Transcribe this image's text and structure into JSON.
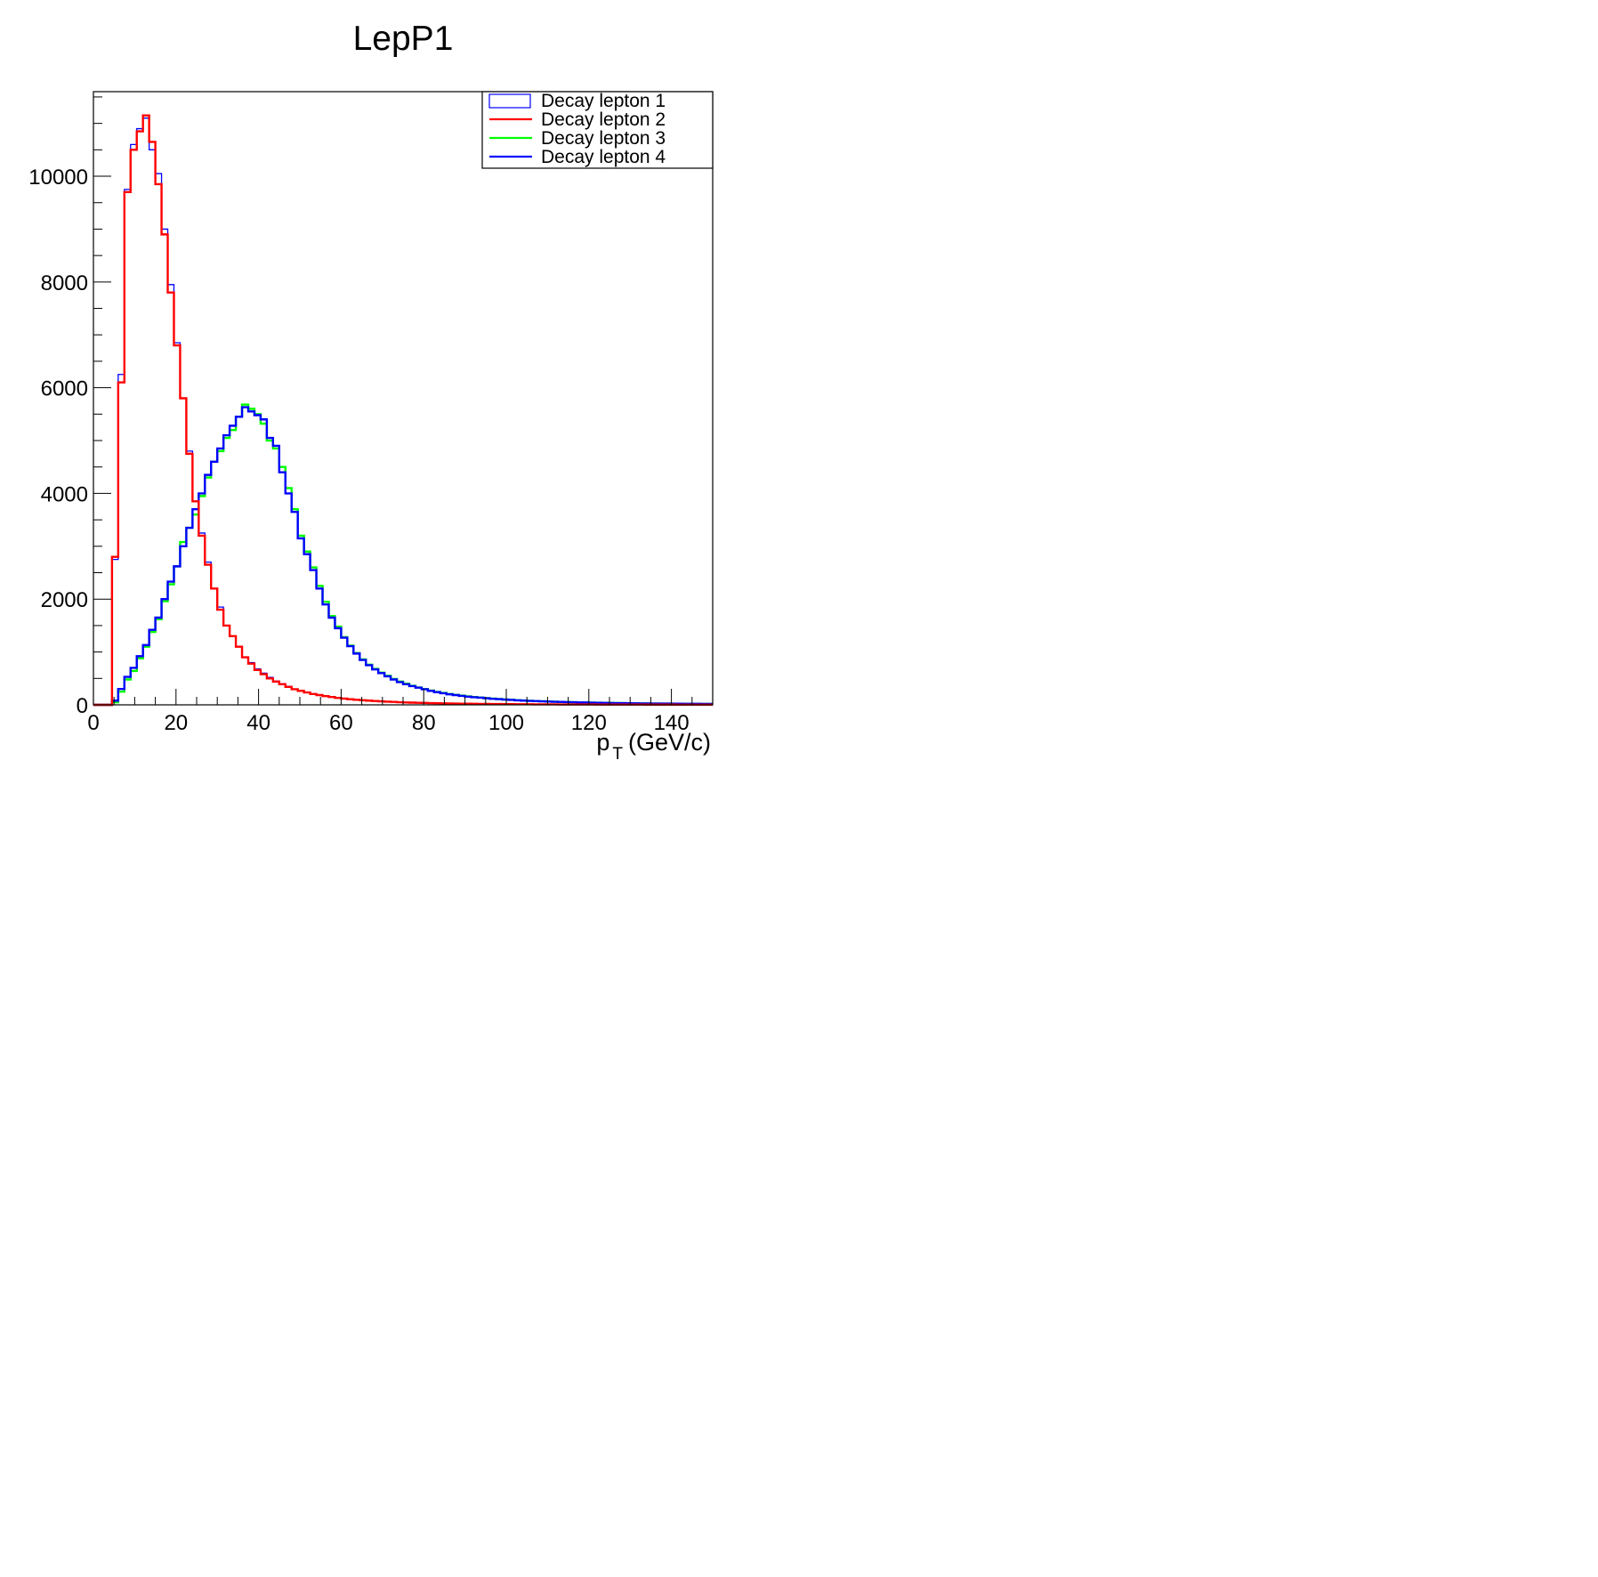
{
  "chart_data": {
    "type": "line",
    "title": "LepP1",
    "xlabel": "p_T (GeV/c)",
    "xlabel_main": "p",
    "xlabel_sub": "T",
    "xlabel_unit": "(GeV/c)",
    "ylabel": "",
    "xlim": [
      0,
      150
    ],
    "ylim": [
      0,
      11600
    ],
    "x_ticks": [
      "0",
      "20",
      "40",
      "60",
      "80",
      "100",
      "120",
      "140"
    ],
    "y_ticks": [
      "0",
      "2000",
      "4000",
      "6000",
      "8000",
      "10000"
    ],
    "bin_width": 1.5,
    "grid": false,
    "legend_position": "top-right",
    "series": [
      {
        "name": "Decay lepton 1",
        "color": "#0000ff",
        "style": "box",
        "x": [
          0.75,
          2.25,
          3.75,
          5.25,
          6.75,
          8.25,
          9.75,
          11.25,
          12.75,
          14.25,
          15.75,
          17.25,
          18.75,
          20.25,
          21.75,
          23.25,
          24.75,
          26.25,
          27.75,
          29.25,
          30.75,
          32.25,
          33.75,
          35.25,
          36.75,
          38.25,
          39.75,
          41.25,
          42.75,
          44.25,
          45.75,
          47.25,
          48.75,
          50.25,
          51.75,
          53.25,
          54.75,
          56.25,
          57.75,
          59.25,
          60.75,
          62.25,
          63.75,
          65.25,
          66.75,
          68.25,
          69.75,
          71.25,
          72.75,
          74.25,
          75.75,
          77.25,
          78.75,
          80.25,
          81.75,
          83.25,
          84.75,
          86.25,
          87.75,
          89.25,
          90.75,
          92.25,
          93.75,
          95.25,
          96.75,
          98.25,
          99.75,
          101.25,
          102.75,
          104.25,
          105.75,
          107.25,
          108.75,
          110.25,
          111.75,
          113.25,
          114.75,
          116.25,
          117.75,
          119.25,
          120.75,
          122.25,
          123.75,
          125.25,
          126.75,
          128.25,
          129.75,
          131.25,
          132.75,
          134.25,
          135.75,
          137.25,
          138.75,
          140.25,
          141.75,
          143.25,
          144.75,
          146.25,
          147.75,
          149.25
        ],
        "values": [
          0,
          0,
          0,
          2750,
          6250,
          9750,
          10600,
          10900,
          11100,
          10500,
          10050,
          9000,
          7950,
          6850,
          5800,
          4800,
          3850,
          3250,
          2700,
          2200,
          1850,
          1500,
          1300,
          1100,
          900,
          800,
          680,
          600,
          520,
          450,
          400,
          350,
          300,
          270,
          240,
          210,
          190,
          170,
          150,
          135,
          120,
          110,
          100,
          90,
          82,
          75,
          68,
          62,
          57,
          52,
          48,
          44,
          40,
          37,
          34,
          31,
          29,
          27,
          25,
          23,
          21,
          20,
          19,
          18,
          17,
          16,
          15,
          14,
          13,
          12,
          12,
          11,
          11,
          10,
          10,
          9,
          9,
          8,
          8,
          8,
          7,
          7,
          7,
          6,
          6,
          6,
          6,
          5,
          5,
          5,
          5,
          5,
          4,
          4,
          4,
          4,
          4,
          4,
          4,
          3
        ]
      },
      {
        "name": "Decay lepton 2",
        "color": "#ff0000",
        "style": "line",
        "x": [
          0.75,
          2.25,
          3.75,
          5.25,
          6.75,
          8.25,
          9.75,
          11.25,
          12.75,
          14.25,
          15.75,
          17.25,
          18.75,
          20.25,
          21.75,
          23.25,
          24.75,
          26.25,
          27.75,
          29.25,
          30.75,
          32.25,
          33.75,
          35.25,
          36.75,
          38.25,
          39.75,
          41.25,
          42.75,
          44.25,
          45.75,
          47.25,
          48.75,
          50.25,
          51.75,
          53.25,
          54.75,
          56.25,
          57.75,
          59.25,
          60.75,
          62.25,
          63.75,
          65.25,
          66.75,
          68.25,
          69.75,
          71.25,
          72.75,
          74.25,
          75.75,
          77.25,
          78.75,
          80.25,
          81.75,
          83.25,
          84.75,
          86.25,
          87.75,
          89.25,
          90.75,
          92.25,
          93.75,
          95.25,
          96.75,
          98.25,
          99.75,
          101.25,
          102.75,
          104.25,
          105.75,
          107.25,
          108.75,
          110.25,
          111.75,
          113.25,
          114.75,
          116.25,
          117.75,
          119.25,
          120.75,
          122.25,
          123.75,
          125.25,
          126.75,
          128.25,
          129.75,
          131.25,
          132.75,
          134.25,
          135.75,
          137.25,
          138.75,
          140.25,
          141.75,
          143.25,
          144.75,
          146.25,
          147.75,
          149.25
        ],
        "values": [
          0,
          0,
          0,
          2800,
          6100,
          9700,
          10500,
          10850,
          11150,
          10650,
          9850,
          8900,
          7800,
          6800,
          5800,
          4750,
          3850,
          3200,
          2650,
          2200,
          1800,
          1500,
          1300,
          1100,
          900,
          780,
          660,
          580,
          500,
          440,
          390,
          340,
          295,
          265,
          235,
          205,
          185,
          165,
          148,
          132,
          118,
          106,
          96,
          88,
          80,
          73,
          66,
          60,
          55,
          50,
          46,
          42,
          39,
          36,
          33,
          30,
          28,
          26,
          24,
          22,
          21,
          19,
          18,
          17,
          16,
          15,
          14,
          13,
          12,
          12,
          11,
          10,
          10,
          9,
          9,
          8,
          8,
          8,
          7,
          7,
          7,
          6,
          6,
          6,
          5,
          5,
          5,
          5,
          5,
          4,
          4,
          4,
          4,
          4,
          3,
          3,
          3,
          3,
          3,
          3
        ]
      },
      {
        "name": "Decay lepton 3",
        "color": "#00ff00",
        "style": "line",
        "x": [
          0.75,
          2.25,
          3.75,
          5.25,
          6.75,
          8.25,
          9.75,
          11.25,
          12.75,
          14.25,
          15.75,
          17.25,
          18.75,
          20.25,
          21.75,
          23.25,
          24.75,
          26.25,
          27.75,
          29.25,
          30.75,
          32.25,
          33.75,
          35.25,
          36.75,
          38.25,
          39.75,
          41.25,
          42.75,
          44.25,
          45.75,
          47.25,
          48.75,
          50.25,
          51.75,
          53.25,
          54.75,
          56.25,
          57.75,
          59.25,
          60.75,
          62.25,
          63.75,
          65.25,
          66.75,
          68.25,
          69.75,
          71.25,
          72.75,
          74.25,
          75.75,
          77.25,
          78.75,
          80.25,
          81.75,
          83.25,
          84.75,
          86.25,
          87.75,
          89.25,
          90.75,
          92.25,
          93.75,
          95.25,
          96.75,
          98.25,
          99.75,
          101.25,
          102.75,
          104.25,
          105.75,
          107.25,
          108.75,
          110.25,
          111.75,
          113.25,
          114.75,
          116.25,
          117.75,
          119.25,
          120.75,
          122.25,
          123.75,
          125.25,
          126.75,
          128.25,
          129.75,
          131.25,
          132.75,
          134.25,
          135.75,
          137.25,
          138.75,
          140.25,
          141.75,
          143.25,
          144.75,
          146.25,
          147.75,
          149.25
        ],
        "values": [
          0,
          0,
          0,
          50,
          250,
          480,
          640,
          880,
          1100,
          1380,
          1620,
          1960,
          2280,
          2620,
          3080,
          3350,
          3600,
          3950,
          4300,
          4600,
          4800,
          5050,
          5200,
          5450,
          5680,
          5600,
          5500,
          5320,
          5000,
          4850,
          4500,
          4100,
          3700,
          3200,
          2900,
          2600,
          2250,
          1950,
          1680,
          1480,
          1280,
          1120,
          980,
          860,
          760,
          680,
          610,
          550,
          490,
          440,
          400,
          360,
          330,
          300,
          270,
          245,
          225,
          205,
          190,
          175,
          160,
          148,
          138,
          128,
          118,
          110,
          102,
          95,
          88,
          82,
          77,
          72,
          68,
          64,
          60,
          56,
          53,
          50,
          47,
          45,
          42,
          40,
          38,
          36,
          34,
          33,
          31,
          30,
          28,
          27,
          26,
          25,
          24,
          23,
          22,
          21,
          20,
          20,
          19,
          18
        ]
      },
      {
        "name": "Decay lepton 4",
        "color": "#0000ff",
        "style": "line",
        "x": [
          0.75,
          2.25,
          3.75,
          5.25,
          6.75,
          8.25,
          9.75,
          11.25,
          12.75,
          14.25,
          15.75,
          17.25,
          18.75,
          20.25,
          21.75,
          23.25,
          24.75,
          26.25,
          27.75,
          29.25,
          30.75,
          32.25,
          33.75,
          35.25,
          36.75,
          38.25,
          39.75,
          41.25,
          42.75,
          44.25,
          45.75,
          47.25,
          48.75,
          50.25,
          51.75,
          53.25,
          54.75,
          56.25,
          57.75,
          59.25,
          60.75,
          62.25,
          63.75,
          65.25,
          66.75,
          68.25,
          69.75,
          71.25,
          72.75,
          74.25,
          75.75,
          77.25,
          78.75,
          80.25,
          81.75,
          83.25,
          84.75,
          86.25,
          87.75,
          89.25,
          90.75,
          92.25,
          93.75,
          95.25,
          96.75,
          98.25,
          99.75,
          101.25,
          102.75,
          104.25,
          105.75,
          107.25,
          108.75,
          110.25,
          111.75,
          113.25,
          114.75,
          116.25,
          117.75,
          119.25,
          120.75,
          122.25,
          123.75,
          125.25,
          126.75,
          128.25,
          129.75,
          131.25,
          132.75,
          134.25,
          135.75,
          137.25,
          138.75,
          140.25,
          141.75,
          143.25,
          144.75,
          146.25,
          147.75,
          149.25
        ],
        "values": [
          0,
          0,
          0,
          80,
          300,
          530,
          700,
          920,
          1130,
          1420,
          1650,
          2000,
          2330,
          2620,
          3000,
          3350,
          3700,
          4000,
          4350,
          4600,
          4850,
          5100,
          5280,
          5450,
          5630,
          5550,
          5480,
          5400,
          5050,
          4900,
          4400,
          4000,
          3650,
          3150,
          2850,
          2550,
          2200,
          1900,
          1650,
          1450,
          1270,
          1110,
          970,
          850,
          750,
          670,
          600,
          540,
          480,
          430,
          390,
          355,
          325,
          295,
          265,
          240,
          220,
          200,
          185,
          170,
          155,
          145,
          135,
          125,
          115,
          108,
          100,
          93,
          86,
          80,
          75,
          70,
          66,
          62,
          58,
          55,
          52,
          49,
          46,
          44,
          41,
          39,
          37,
          35,
          33,
          32,
          30,
          29,
          27,
          26,
          25,
          24,
          23,
          22,
          21,
          20,
          19,
          19,
          18,
          17
        ]
      }
    ]
  }
}
